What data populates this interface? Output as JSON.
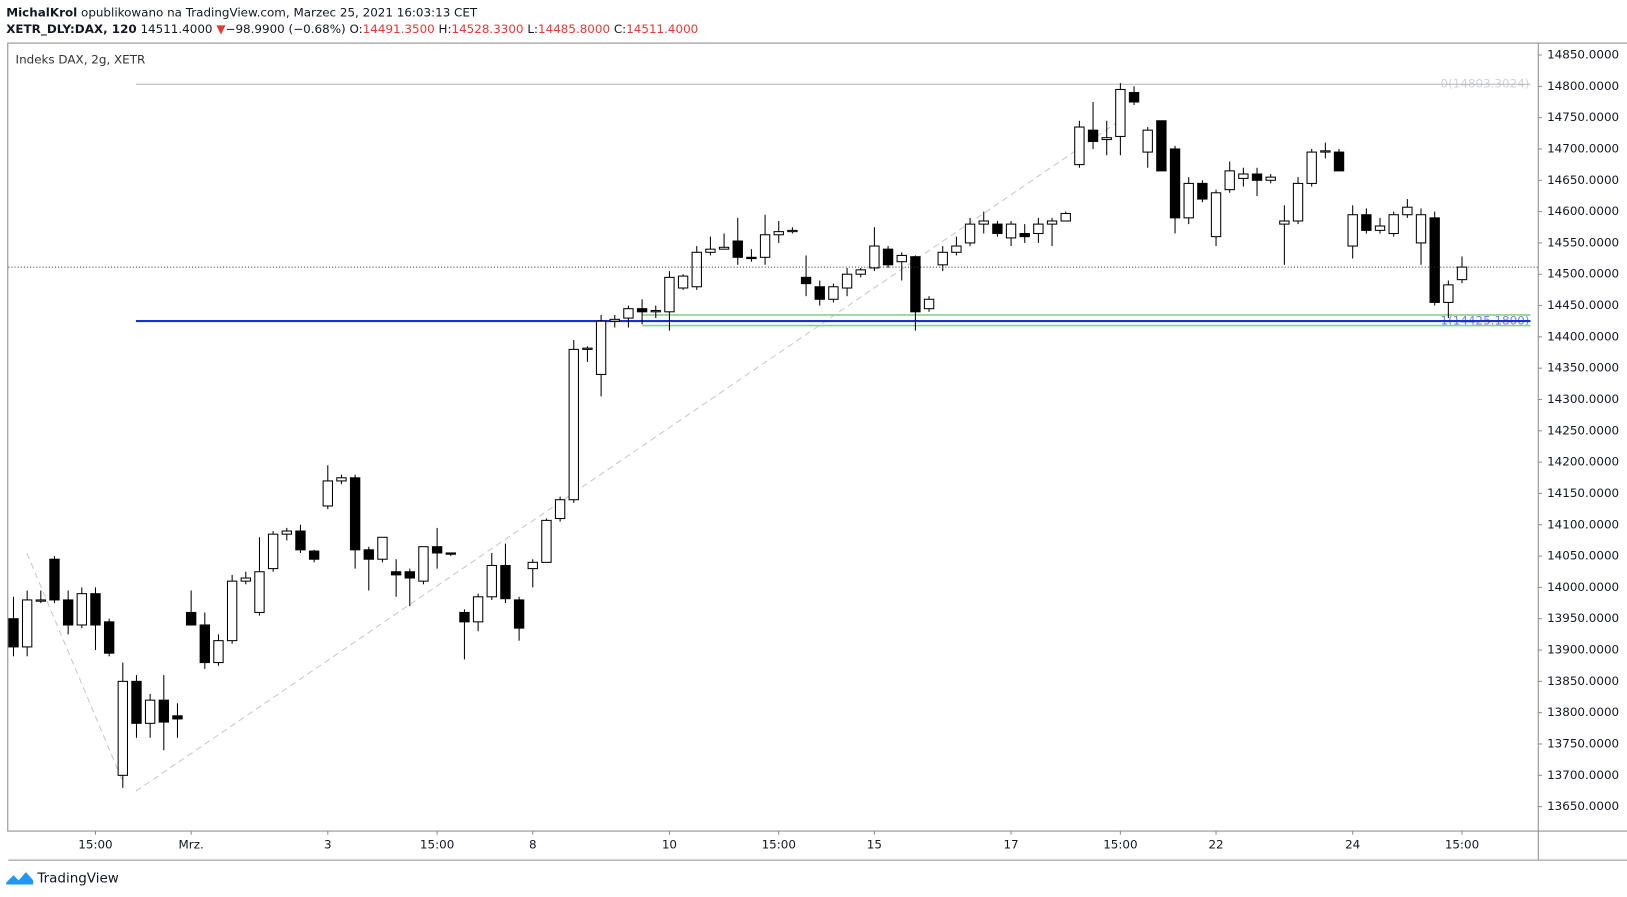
{
  "header": {
    "author": "MichalKrol",
    "published": "opublikowano na TradingView.com, Marzec 25, 2021 16:03:13 CET",
    "quote": {
      "symbol": "XETR_DLY:DAX, 120",
      "last": "14511.4000",
      "arrow": "▼",
      "change": "−98.9900 (−0.68%)",
      "o_label": "O:",
      "o": "14491.3500",
      "h_label": "H:",
      "h": "14528.3300",
      "l_label": "L:",
      "l": "14485.8000",
      "c_label": "C:",
      "c": "14511.4000"
    }
  },
  "footer": {
    "brand": "TradingView"
  },
  "chart_data": {
    "type": "candlestick",
    "title": "Indeks DAX, 2g, XETR",
    "categories": [
      null,
      null,
      null,
      null,
      null,
      null,
      "15:00",
      null,
      null,
      null,
      null,
      null,
      null,
      "Mrz.",
      null,
      null,
      null,
      null,
      null,
      null,
      null,
      null,
      null,
      "3",
      null,
      null,
      null,
      null,
      null,
      null,
      null,
      "15:00",
      null,
      null,
      null,
      null,
      null,
      null,
      "8",
      null,
      null,
      null,
      null,
      null,
      null,
      null,
      null,
      null,
      "10",
      null,
      null,
      null,
      null,
      null,
      null,
      null,
      "15:00",
      null,
      null,
      null,
      null,
      null,
      null,
      "15",
      null,
      null,
      null,
      null,
      null,
      null,
      null,
      null,
      null,
      "17",
      null,
      null,
      null,
      null,
      null,
      null,
      null,
      "15:00",
      null,
      null,
      null,
      null,
      null,
      null,
      "22",
      null,
      null,
      null,
      null,
      null,
      null,
      null,
      null,
      null,
      "24",
      null,
      null,
      null,
      null,
      null,
      null,
      null,
      "15:00"
    ],
    "open": [
      13950,
      13905,
      13978,
      14045,
      13980,
      13940,
      13990,
      13945,
      13700,
      13850,
      13783,
      13820,
      13795,
      13960,
      13940,
      13880,
      13915,
      14010,
      13960,
      14030,
      14085,
      14090,
      14058,
      14130,
      14170,
      14175,
      14060,
      14045,
      14025,
      14025,
      14010,
      14065,
      14055,
      13960,
      13945,
      13985,
      14035,
      13980,
      14030,
      14040,
      14110,
      14140,
      14380,
      14340,
      14425,
      14430,
      14445,
      14440,
      14440,
      14478,
      14480,
      14535,
      14540,
      14553,
      14527,
      14527,
      14563,
      14568,
      14495,
      14480,
      14460,
      14478,
      14500,
      14510,
      14540,
      14520,
      14528,
      14445,
      14515,
      14535,
      14550,
      14580,
      14580,
      14558,
      14565,
      14565,
      14580,
      14585,
      14675,
      14730,
      14715,
      14720,
      14790,
      14695,
      14745,
      14700,
      14590,
      14645,
      14560,
      14635,
      14653,
      14660,
      14650,
      14580,
      14585,
      14645,
      14695,
      14695,
      14545,
      14595,
      14570,
      14565,
      14595,
      14550,
      14590,
      14455,
      14491.35
    ],
    "high": [
      13985,
      13995,
      13995,
      14050,
      13995,
      14000,
      14000,
      13950,
      13880,
      13860,
      13830,
      13860,
      13815,
      13995,
      13960,
      13925,
      14020,
      14025,
      14080,
      14090,
      14095,
      14100,
      14060,
      14195,
      14180,
      14180,
      14065,
      14080,
      14045,
      14030,
      14065,
      14095,
      14055,
      13965,
      13990,
      14055,
      14070,
      13985,
      14045,
      14110,
      14145,
      14395,
      14385,
      14435,
      14435,
      14450,
      14460,
      14450,
      14505,
      14500,
      14545,
      14560,
      14565,
      14590,
      14540,
      14595,
      14585,
      14575,
      14530,
      14490,
      14485,
      14510,
      14510,
      14575,
      14545,
      14535,
      14530,
      14465,
      14545,
      14560,
      14590,
      14600,
      14585,
      14585,
      14580,
      14590,
      14590,
      14600,
      14745,
      14775,
      14745,
      14805,
      14800,
      14735,
      14745,
      14705,
      14655,
      14650,
      14635,
      14680,
      14670,
      14670,
      14660,
      14610,
      14655,
      14700,
      14710,
      14700,
      14610,
      14605,
      14590,
      14600,
      14620,
      14605,
      14600,
      14490,
      14528.33
    ],
    "low": [
      13890,
      13890,
      13975,
      13975,
      13925,
      13935,
      13900,
      13890,
      13680,
      13760,
      13760,
      13740,
      13760,
      13940,
      13870,
      13875,
      13910,
      14005,
      13955,
      14025,
      14075,
      14055,
      14040,
      14125,
      14165,
      14030,
      13995,
      14040,
      13985,
      13970,
      14005,
      14030,
      14050,
      13885,
      13930,
      13980,
      13975,
      13915,
      14000,
      14040,
      14105,
      14135,
      14360,
      14305,
      14415,
      14415,
      14420,
      14430,
      14410,
      14475,
      14475,
      14530,
      14540,
      14515,
      14520,
      14515,
      14550,
      14565,
      14465,
      14450,
      14455,
      14465,
      14495,
      14505,
      14510,
      14490,
      14410,
      14440,
      14505,
      14530,
      14545,
      14565,
      14560,
      14545,
      14550,
      14550,
      14545,
      14585,
      14670,
      14700,
      14690,
      14690,
      14770,
      14670,
      14665,
      14565,
      14580,
      14615,
      14545,
      14630,
      14640,
      14625,
      14645,
      14515,
      14580,
      14640,
      14685,
      14665,
      14525,
      14565,
      14565,
      14560,
      14590,
      14515,
      14450,
      14430,
      14485.8
    ],
    "close": [
      13905,
      13980,
      13980,
      13980,
      13940,
      13990,
      13940,
      13895,
      13850,
      13783,
      13820,
      13785,
      13790,
      13940,
      13880,
      13915,
      14010,
      14015,
      14025,
      14085,
      14090,
      14060,
      14045,
      14170,
      14175,
      14060,
      14045,
      14080,
      14020,
      14015,
      14065,
      14055,
      14053,
      13945,
      13985,
      14035,
      13982,
      13935,
      14040,
      14107,
      14140,
      14380,
      14382,
      14425,
      14428,
      14445,
      14440,
      14442,
      14495,
      14497,
      14535,
      14540,
      14543,
      14527,
      14525,
      14563,
      14568,
      14570,
      14485,
      14460,
      14480,
      14500,
      14507,
      14545,
      14515,
      14530,
      14440,
      14460,
      14535,
      14545,
      14580,
      14585,
      14565,
      14580,
      14560,
      14580,
      14585,
      14597,
      14735,
      14712,
      14718,
      14795,
      14775,
      14730,
      14665,
      14590,
      14645,
      14620,
      14630,
      14665,
      14660,
      14650,
      14655,
      14585,
      14645,
      14695,
      14697,
      14665,
      14595,
      14570,
      14577,
      14595,
      14607,
      14595,
      14455,
      14483,
      14511.4
    ],
    "up_color": "#ffffff",
    "down_color": "#000000",
    "wick_color": "#000000",
    "ylim": [
      13611.8,
      14868.2
    ],
    "yticks": [
      {
        "value": 13650,
        "label": "13650.0000"
      },
      {
        "value": 13700,
        "label": "13700.0000"
      },
      {
        "value": 13750,
        "label": "13750.0000"
      },
      {
        "value": 13800,
        "label": "13800.0000"
      },
      {
        "value": 13850,
        "label": "13850.0000"
      },
      {
        "value": 13900,
        "label": "13900.0000"
      },
      {
        "value": 13950,
        "label": "13950.0000"
      },
      {
        "value": 14000,
        "label": "14000.0000"
      },
      {
        "value": 14050,
        "label": "14050.0000"
      },
      {
        "value": 14100,
        "label": "14100.0000"
      },
      {
        "value": 14150,
        "label": "14150.0000"
      },
      {
        "value": 14200,
        "label": "14200.0000"
      },
      {
        "value": 14250,
        "label": "14250.0000"
      },
      {
        "value": 14300,
        "label": "14300.0000"
      },
      {
        "value": 14350,
        "label": "14350.0000"
      },
      {
        "value": 14400,
        "label": "14400.0000"
      },
      {
        "value": 14450,
        "label": "14450.0000"
      },
      {
        "value": 14500,
        "label": "14500.0000"
      },
      {
        "value": 14550,
        "label": "14550.0000"
      },
      {
        "value": 14600,
        "label": "14600.0000"
      },
      {
        "value": 14650,
        "label": "14650.0000"
      },
      {
        "value": 14700,
        "label": "14700.0000"
      },
      {
        "value": 14750,
        "label": "14750.0000"
      },
      {
        "value": 14800,
        "label": "14800.0000"
      },
      {
        "value": 14850,
        "label": "14850.0000"
      }
    ],
    "levels": [
      {
        "value": 14803.3024,
        "label": "0(14803.3024)",
        "color": "#b2b5be"
      },
      {
        "value": 14425.18,
        "label": "1(14425.1800)",
        "color": "#1b2fd6"
      }
    ],
    "zone": {
      "values": [
        14435,
        14418
      ],
      "color": "#8ccf8c"
    },
    "last_price_line_color": "#333333"
  }
}
